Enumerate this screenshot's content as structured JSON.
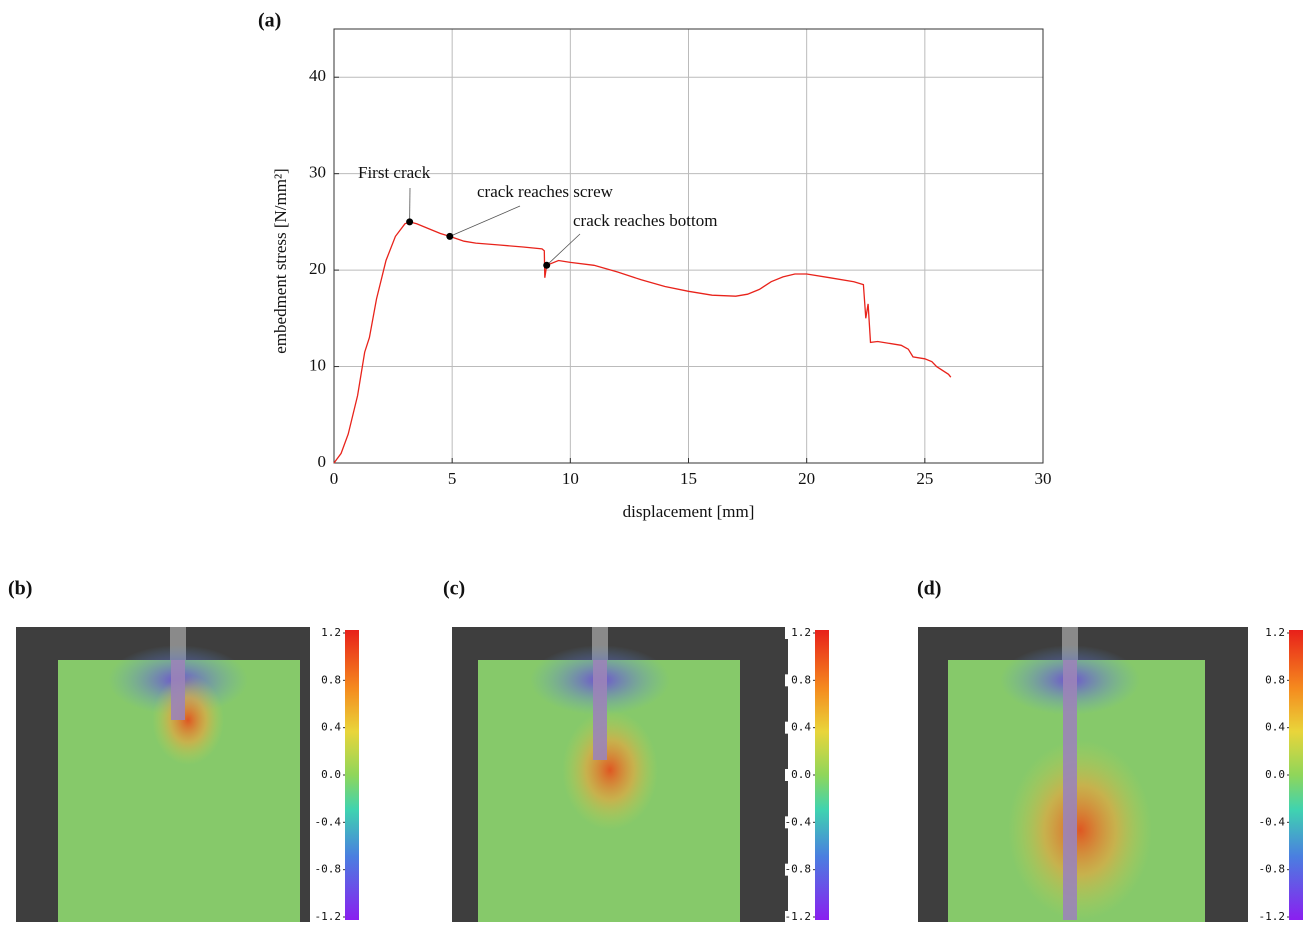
{
  "chart_data": [
    {
      "type": "line",
      "panel": "(a)",
      "xlabel": "displacement [mm]",
      "ylabel": "embedment stress [N/mm²]",
      "color": "#e8231b",
      "grid": true,
      "xlim": [
        0,
        30
      ],
      "xticks": [
        0,
        5,
        10,
        15,
        20,
        25,
        30
      ],
      "ylim": [
        0,
        45
      ],
      "yticks": [
        0,
        10,
        20,
        30,
        40
      ],
      "x": [
        0,
        0.3,
        0.6,
        1,
        1.3,
        1.5,
        1.8,
        2.2,
        2.6,
        3,
        3.2,
        3.5,
        4,
        4.5,
        4.9,
        5.5,
        6,
        7,
        8,
        8.8,
        8.9,
        8.92,
        9,
        9.5,
        10,
        11,
        12,
        13,
        14,
        15,
        16,
        17,
        17.5,
        18,
        18.5,
        19,
        19.5,
        20,
        21,
        22,
        22.4,
        22.5,
        22.6,
        22.7,
        23,
        24,
        24.3,
        24.5,
        25,
        25.3,
        25.5,
        26,
        26.1
      ],
      "values": [
        0,
        1,
        3,
        7,
        11.5,
        13,
        17,
        21,
        23.5,
        24.8,
        25,
        24.8,
        24.3,
        23.8,
        23.5,
        23,
        22.8,
        22.6,
        22.4,
        22.2,
        22,
        19.2,
        20.5,
        21,
        20.8,
        20.5,
        19.8,
        19,
        18.3,
        17.8,
        17.4,
        17.3,
        17.5,
        18,
        18.8,
        19.3,
        19.6,
        19.6,
        19.2,
        18.8,
        18.5,
        15,
        16.5,
        12.5,
        12.6,
        12.2,
        11.8,
        11,
        10.8,
        10.5,
        10,
        9.2,
        8.9
      ],
      "markers": [
        {
          "x": 3.2,
          "y": 25,
          "label": "First crack"
        },
        {
          "x": 4.9,
          "y": 23.5,
          "label": "crack reaches screw"
        },
        {
          "x": 9,
          "y": 20.5,
          "label": "crack reaches bottom"
        }
      ]
    },
    {
      "type": "image",
      "panel": "(b)",
      "clim": [
        -1.2,
        1.2
      ],
      "cticks": [
        1.2,
        0.8,
        0.4,
        {
          "value": 0,
          "label": "0.0"
        },
        -0.4,
        -0.8,
        -1.2
      ]
    },
    {
      "type": "image",
      "panel": "(c)",
      "clim": [
        -1.2,
        1.2
      ],
      "cticks": [
        1.2,
        0.8,
        0.4,
        {
          "value": 0,
          "label": "0.0"
        },
        -0.4,
        -0.8,
        -1.2
      ]
    },
    {
      "type": "image",
      "panel": "(d)",
      "clim": [
        -1.2,
        1.2
      ],
      "cticks": [
        1.2,
        0.8,
        0.4,
        {
          "value": 0,
          "label": "0.0"
        },
        -0.4,
        -0.8,
        -1.2
      ]
    }
  ]
}
